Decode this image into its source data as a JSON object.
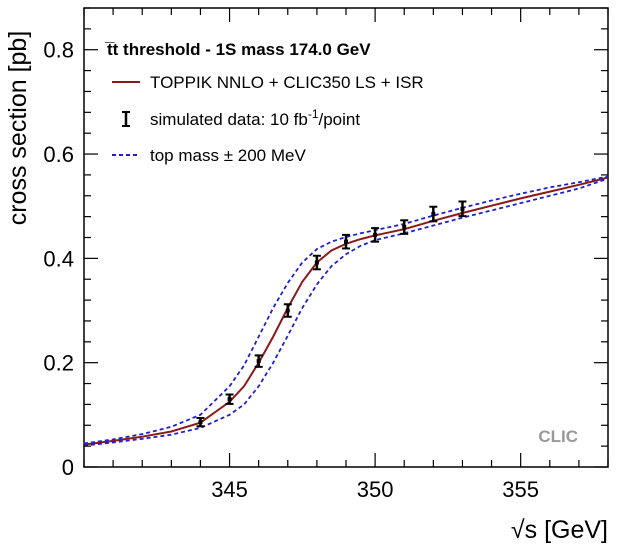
{
  "chart_data": {
    "type": "line",
    "xlabel": "√s [GeV]",
    "ylabel": "cross section [pb]",
    "xlim": [
      340,
      358
    ],
    "ylim": [
      0,
      0.88
    ],
    "x_ticks": [
      345,
      350,
      355
    ],
    "y_ticks": [
      0,
      0.2,
      0.4,
      0.6,
      0.8
    ],
    "y_tick_labels": [
      "0",
      "0.2",
      "0.4",
      "0.6",
      "0.8"
    ],
    "grid": false,
    "legend_position": "top-left",
    "legend_title": "t̅t threshold - 1S mass 174.0 GeV",
    "watermark": "CLIC",
    "series": [
      {
        "name": "TOPPIK NNLO + CLIC350 LS + ISR",
        "style": "solid",
        "color": "#8b1a1a",
        "x": [
          340,
          341,
          342,
          343,
          344,
          345,
          345.5,
          346,
          346.5,
          347,
          347.5,
          348,
          348.5,
          349,
          349.5,
          350,
          351,
          352,
          353,
          354,
          355,
          356,
          357,
          358
        ],
        "y": [
          0.043,
          0.05,
          0.058,
          0.068,
          0.085,
          0.125,
          0.155,
          0.2,
          0.25,
          0.305,
          0.355,
          0.392,
          0.415,
          0.428,
          0.437,
          0.444,
          0.456,
          0.472,
          0.487,
          0.501,
          0.515,
          0.528,
          0.541,
          0.555
        ]
      },
      {
        "name": "top mass ± 200 MeV",
        "style": "dashed",
        "color": "#2020cc",
        "x": [
          340,
          341,
          342,
          343,
          344,
          345,
          345.5,
          346,
          346.5,
          347,
          347.5,
          348,
          348.5,
          349,
          349.5,
          350,
          351,
          352,
          353,
          354,
          355,
          356,
          357,
          358
        ],
        "y": [
          0.045,
          0.053,
          0.063,
          0.077,
          0.1,
          0.155,
          0.195,
          0.25,
          0.305,
          0.353,
          0.392,
          0.418,
          0.432,
          0.441,
          0.448,
          0.454,
          0.466,
          0.482,
          0.497,
          0.511,
          0.524,
          0.536,
          0.546,
          0.557
        ]
      },
      {
        "name": "",
        "style": "dashed",
        "color": "#2020cc",
        "x": [
          340,
          341,
          342,
          343,
          344,
          345,
          345.5,
          346,
          346.5,
          347,
          347.5,
          348,
          348.5,
          349,
          349.5,
          350,
          351,
          352,
          353,
          354,
          355,
          356,
          357,
          358
        ],
        "y": [
          0.041,
          0.047,
          0.054,
          0.062,
          0.075,
          0.1,
          0.12,
          0.155,
          0.2,
          0.252,
          0.305,
          0.35,
          0.385,
          0.408,
          0.424,
          0.435,
          0.448,
          0.463,
          0.478,
          0.492,
          0.506,
          0.52,
          0.534,
          0.553
        ]
      }
    ],
    "data_points": {
      "name": "simulated data: 10 fb⁻¹/point",
      "x": [
        344,
        345,
        346,
        347,
        348,
        349,
        350,
        351,
        352,
        353
      ],
      "y": [
        0.086,
        0.13,
        0.203,
        0.3,
        0.392,
        0.432,
        0.445,
        0.46,
        0.485,
        0.495
      ],
      "err": [
        0.008,
        0.009,
        0.011,
        0.012,
        0.013,
        0.013,
        0.013,
        0.013,
        0.014,
        0.014
      ]
    },
    "legend": {
      "title": "t̅t threshold - 1S mass 174.0 GeV",
      "line_label": "TOPPIK NNLO + CLIC350 LS + ISR",
      "data_label_pre": "simulated data: 10 fb",
      "data_label_sup": "-1",
      "data_label_post": "/point",
      "dashed_label": "top mass ± 200 MeV"
    }
  }
}
